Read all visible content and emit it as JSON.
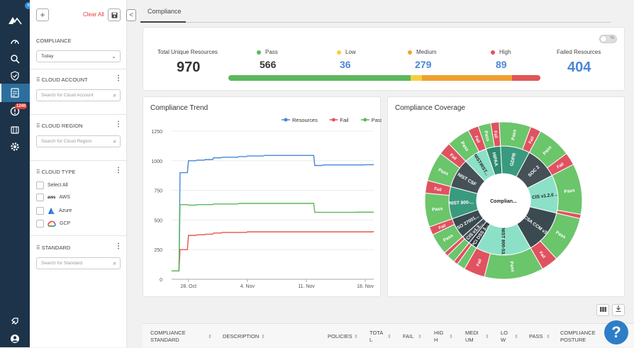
{
  "nav": {
    "alert_count": "1240",
    "dot_label": "x"
  },
  "filter": {
    "add_label": "+",
    "clear_all": "Clear All",
    "collapse_label": "<",
    "compliance_heading": "COMPLIANCE",
    "compliance_select": "Today",
    "cloud_account_heading": "CLOUD ACCOUNT",
    "cloud_account_placeholder": "Search for Cloud Account",
    "cloud_region_heading": "CLOUD REGION",
    "cloud_region_placeholder": "Search for Cloud Region",
    "cloud_type_heading": "CLOUD TYPE",
    "cloud_types": [
      "Select All",
      "AWS",
      "Azure",
      "GCP"
    ],
    "standard_heading": "STANDARD",
    "standard_placeholder": "Search for Standard"
  },
  "tabs": {
    "active": "Compliance"
  },
  "summary": {
    "total_label": "Total Unique Resources",
    "total_value": "970",
    "pass_label": "Pass",
    "pass_value": "566",
    "low_label": "Low",
    "low_value": "36",
    "medium_label": "Medium",
    "medium_value": "279",
    "high_label": "High",
    "high_value": "89",
    "failed_label": "Failed Resources",
    "failed_value": "404",
    "toggle_label": "%",
    "bar": [
      {
        "name": "Pass",
        "value": 566,
        "color": "#5cb85c"
      },
      {
        "name": "Low",
        "value": 36,
        "color": "#f4d03f"
      },
      {
        "name": "Medium",
        "value": 279,
        "color": "#f0a030"
      },
      {
        "name": "High",
        "value": 89,
        "color": "#e05555"
      }
    ]
  },
  "trend": {
    "title": "Compliance Trend",
    "chart_data": {
      "type": "line",
      "x": [
        "Oct 26",
        "Oct 27",
        "Oct 28",
        "Oct 29",
        "Oct 30",
        "Oct 31",
        "Nov 1",
        "Nov 2",
        "Nov 3",
        "Nov 4",
        "Nov 5",
        "Nov 6",
        "Nov 7",
        "Nov 8",
        "Nov 9",
        "Nov 10",
        "Nov 11",
        "Nov 12",
        "Nov 13",
        "Nov 14",
        "Nov 15",
        "Nov 16",
        "Nov 17",
        "Nov 18",
        "Nov 19"
      ],
      "xticks": [
        "28. Oct",
        "4. Nov",
        "11. Nov",
        "18. Nov"
      ],
      "xtick_index": [
        2,
        9,
        16,
        23
      ],
      "yticks": [
        0,
        250,
        500,
        750,
        1000,
        1250
      ],
      "ylim": [
        0,
        1250
      ],
      "series": [
        {
          "name": "Resources",
          "color": "#4a86d8",
          "values": [
            70,
            900,
            1000,
            1005,
            1010,
            1025,
            1030,
            1030,
            1035,
            1040,
            1040,
            1045,
            1045,
            1045,
            1045,
            1045,
            1045,
            960,
            965,
            965,
            965,
            965,
            965,
            966,
            970
          ]
        },
        {
          "name": "Fail",
          "color": "#e8544f",
          "values": [
            70,
            250,
            370,
            375,
            380,
            390,
            395,
            395,
            395,
            400,
            400,
            400,
            400,
            400,
            400,
            400,
            400,
            400,
            400,
            400,
            400,
            400,
            400,
            400,
            404
          ]
        },
        {
          "name": "Pass",
          "color": "#5cb85c",
          "values": [
            70,
            630,
            625,
            630,
            630,
            635,
            635,
            635,
            640,
            640,
            640,
            640,
            640,
            640,
            640,
            640,
            640,
            565,
            565,
            565,
            565,
            565,
            566,
            566,
            566
          ]
        }
      ]
    }
  },
  "coverage": {
    "title": "Compliance Coverage",
    "center_label": "Complian...",
    "chart_data": {
      "type": "sunburst",
      "standards": [
        {
          "name": "HIPAA",
          "value": 10,
          "color": "#2e8b6f",
          "pass": 6,
          "fail": 4
        },
        {
          "name": "GDPR",
          "value": 20,
          "color": "#3a9a7e",
          "pass": 15,
          "fail": 5
        },
        {
          "name": "SOC 2",
          "value": 22,
          "color": "#455057",
          "pass": 16,
          "fail": 6
        },
        {
          "name": "CIS v1.2.0 ...",
          "value": 26,
          "color": "#8de0c8",
          "pass": 24,
          "fail": 2
        },
        {
          "name": "CSA CCM v3...",
          "value": 30,
          "color": "#3a4a50",
          "pass": 22,
          "fail": 8
        },
        {
          "name": "NIST 800-53...",
          "value": 38,
          "color": "#8de0c8",
          "pass": 28,
          "fail": 10
        },
        {
          "name": "PCI DSS 3...",
          "value": 6,
          "color": "#2e3c42",
          "pass": 4,
          "fail": 2
        },
        {
          "name": "CIS v1.3...",
          "value": 6,
          "color": "#455057",
          "pass": 4,
          "fail": 2
        },
        {
          "name": "ISO 27001...",
          "value": 14,
          "color": "#3a4a50",
          "pass": 10,
          "fail": 4
        },
        {
          "name": "NIST 800-...",
          "value": 22,
          "color": "#3a9a7e",
          "pass": 16,
          "fail": 6
        },
        {
          "name": "NIST CSF",
          "value": 20,
          "color": "#455057",
          "pass": 14,
          "fail": 6
        },
        {
          "name": "NISTIRST...",
          "value": 16,
          "color": "#8de0c8",
          "pass": 11,
          "fail": 5
        }
      ],
      "pass_label": "Pass",
      "fail_label": "Fail",
      "pass_color": "#6bc56b",
      "fail_color": "#e05260"
    }
  },
  "table": {
    "headers": [
      "COMPLIANCE STANDARD",
      "DESCRIPTION",
      "POLICIES",
      "TOTAL",
      "FAIL",
      "HIGH",
      "MEDIUM",
      "LOW",
      "PASS",
      "COMPLIANCE POSTURE"
    ]
  },
  "help_label": "?"
}
